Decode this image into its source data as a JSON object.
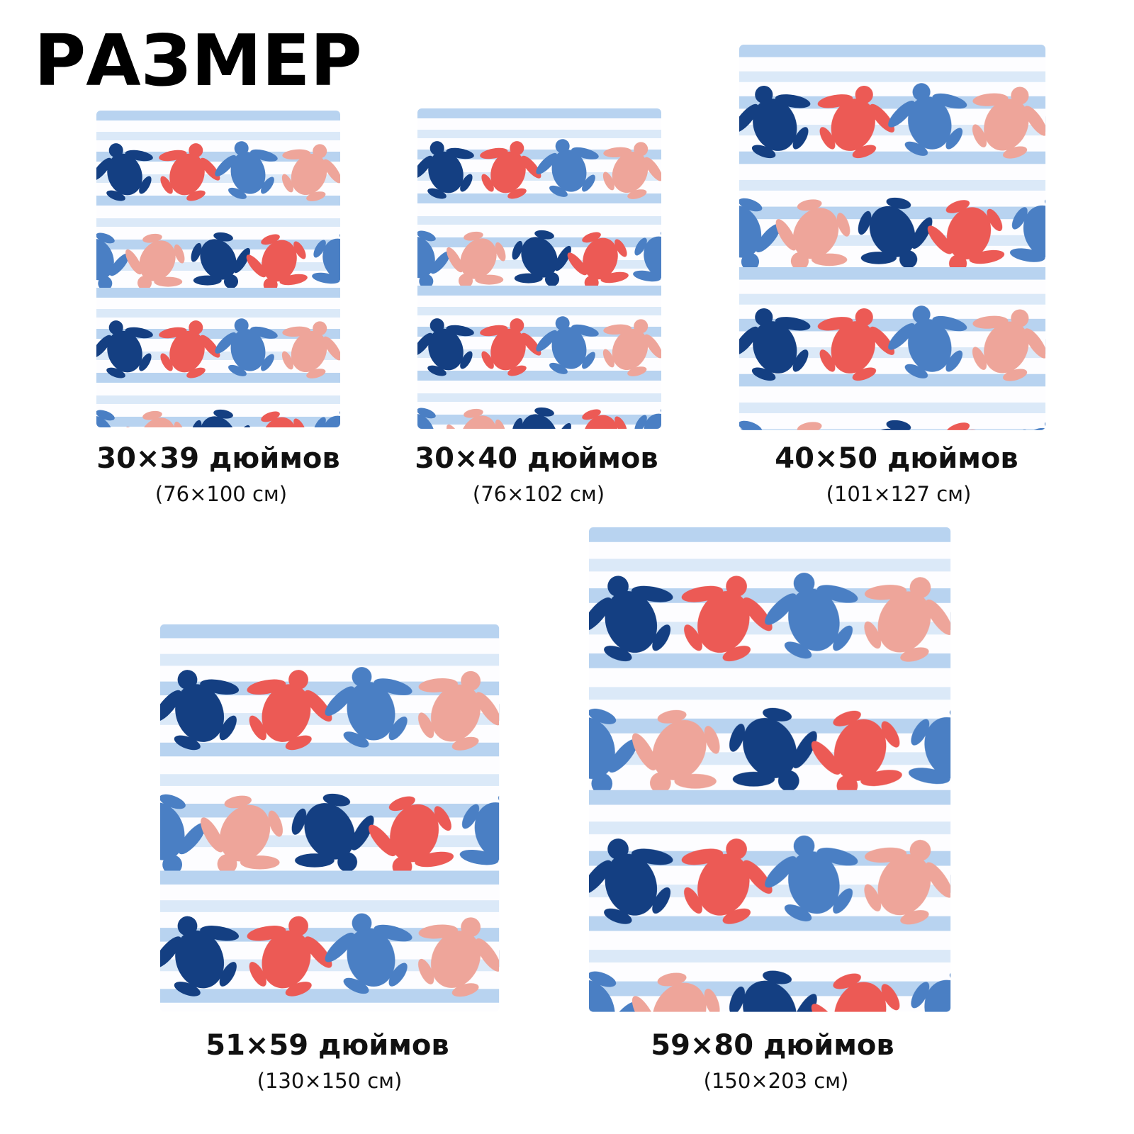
{
  "title": "РАЗМЕР",
  "sizes": [
    {
      "label": "30×39 дюймов",
      "sublabel": "(76×100 см)"
    },
    {
      "label": "30×40 дюймов",
      "sublabel": "(76×102 см)"
    },
    {
      "label": "40×50 дюймов",
      "sublabel": "(101×127 см)"
    },
    {
      "label": "51×59 дюймов",
      "sublabel": "(130×150 см)"
    },
    {
      "label": "59×80 дюймов",
      "sublabel": "(150×203 см)"
    }
  ]
}
